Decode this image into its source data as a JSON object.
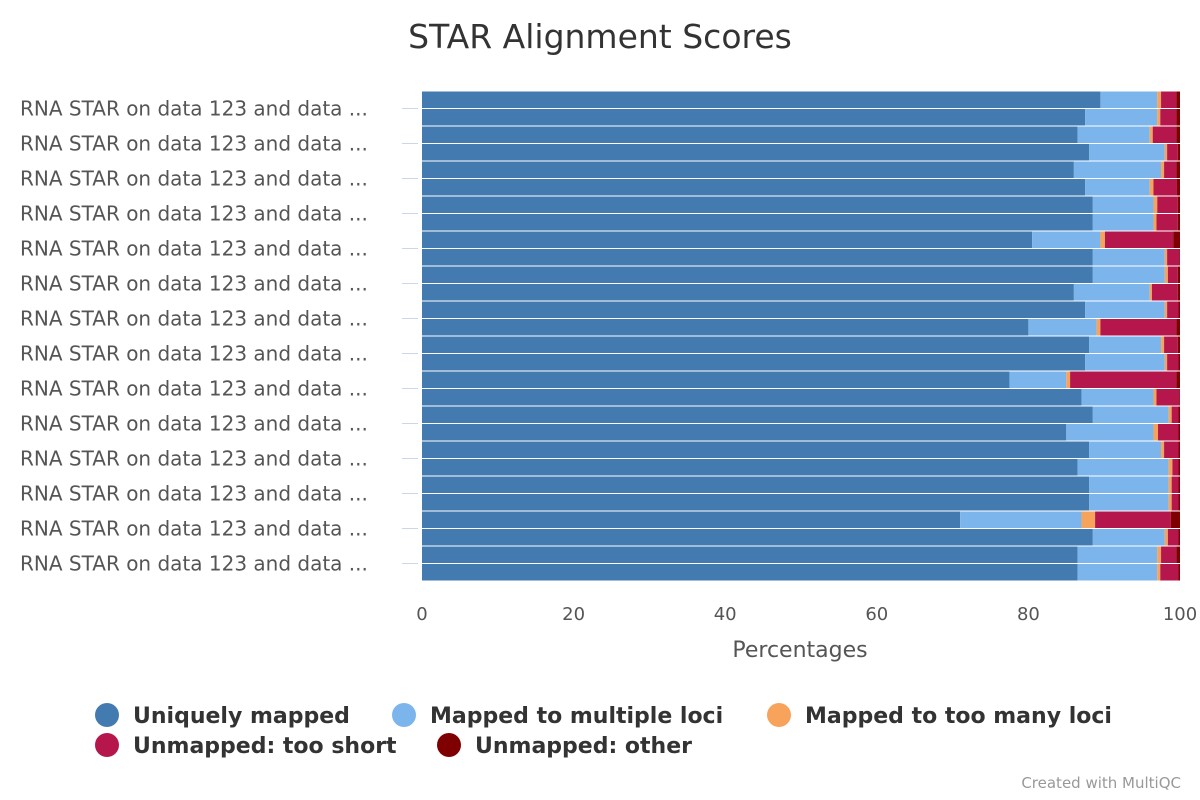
{
  "chart_data": {
    "type": "bar",
    "orientation": "horizontal",
    "stacking": "percent",
    "title": "STAR Alignment Scores",
    "xlabel": "Percentages",
    "ylabel": "",
    "xlim": [
      0,
      100
    ],
    "x_ticks": [
      "0",
      "20",
      "40",
      "60",
      "80",
      "100"
    ],
    "grid": false,
    "legend_position": "bottom",
    "credit": "Created with MultiQC",
    "categories": [
      "RNA STAR on data 123 and data ...",
      "RNA STAR on data 123 and data ...",
      "RNA STAR on data 123 and data ...",
      "RNA STAR on data 123 and data ...",
      "RNA STAR on data 123 and data ...",
      "RNA STAR on data 123 and data ...",
      "RNA STAR on data 123 and data ...",
      "RNA STAR on data 123 and data ...",
      "RNA STAR on data 123 and data ...",
      "RNA STAR on data 123 and data ...",
      "RNA STAR on data 123 and data ...",
      "RNA STAR on data 123 and data ...",
      "RNA STAR on data 123 and data ...",
      "RNA STAR on data 123 and data ...",
      "RNA STAR on data 123 and data ...",
      "RNA STAR on data 123 and data ...",
      "RNA STAR on data 123 and data ...",
      "RNA STAR on data 123 and data ...",
      "RNA STAR on data 123 and data ...",
      "RNA STAR on data 123 and data ...",
      "RNA STAR on data 123 and data ...",
      "RNA STAR on data 123 and data ...",
      "RNA STAR on data 123 and data ...",
      "RNA STAR on data 123 and data ...",
      "RNA STAR on data 123 and data ...",
      "RNA STAR on data 123 and data ...",
      "RNA STAR on data 123 and data ...",
      "RNA STAR on data 123 and data ..."
    ],
    "visible_label_every": 2,
    "series": [
      {
        "name": "Uniquely mapped",
        "color": "#437bb1",
        "values": [
          89.5,
          87.5,
          86.5,
          88.0,
          86.0,
          87.5,
          88.5,
          88.5,
          80.5,
          88.5,
          88.5,
          86.0,
          87.5,
          80.0,
          88.0,
          87.5,
          77.5,
          87.0,
          88.5,
          85.0,
          88.0,
          86.5,
          88.0,
          88.0,
          71.0,
          88.5,
          86.5,
          86.5
        ]
      },
      {
        "name": "Mapped to multiple loci",
        "color": "#7cb5ec",
        "values": [
          7.5,
          9.5,
          9.5,
          10.0,
          11.5,
          8.5,
          8.0,
          8.0,
          9.0,
          9.5,
          9.5,
          10.0,
          10.5,
          9.0,
          9.5,
          10.5,
          7.5,
          9.5,
          10.0,
          11.5,
          9.5,
          12.0,
          10.5,
          10.5,
          16.0,
          9.5,
          10.5,
          10.5
        ]
      },
      {
        "name": "Mapped to too many loci",
        "color": "#f7a35c",
        "values": [
          0.5,
          0.4,
          0.4,
          0.3,
          0.4,
          0.5,
          0.5,
          0.4,
          0.6,
          0.3,
          0.4,
          0.3,
          0.3,
          0.5,
          0.4,
          0.3,
          0.5,
          0.4,
          0.4,
          0.6,
          0.4,
          0.5,
          0.4,
          0.4,
          1.8,
          0.4,
          0.5,
          0.4
        ]
      },
      {
        "name": "Unmapped: too short",
        "color": "#b5174d",
        "values": [
          2.0,
          2.1,
          3.1,
          1.4,
          1.6,
          3.1,
          2.7,
          2.8,
          9.0,
          1.6,
          1.3,
          3.4,
          1.5,
          10.0,
          1.8,
          1.5,
          14.0,
          3.0,
          0.9,
          2.7,
          1.9,
          0.8,
          0.9,
          0.9,
          10.0,
          1.4,
          2.0,
          2.4
        ]
      },
      {
        "name": "Unmapped: other",
        "color": "#7f0000",
        "values": [
          0.5,
          0.5,
          0.5,
          0.3,
          0.5,
          0.4,
          0.3,
          0.3,
          0.9,
          0.1,
          0.3,
          0.3,
          0.2,
          0.5,
          0.3,
          0.2,
          0.5,
          0.1,
          0.2,
          0.2,
          0.2,
          0.2,
          0.2,
          0.2,
          1.2,
          0.2,
          0.5,
          0.2
        ]
      }
    ]
  }
}
